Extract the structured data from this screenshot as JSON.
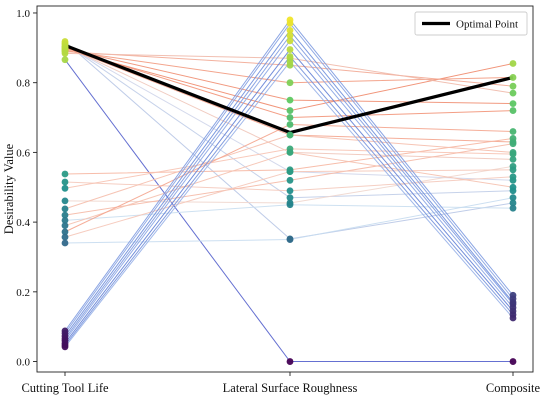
{
  "chart_data": {
    "type": "line",
    "categories": [
      "Cutting Tool Life",
      "Lateral Surface Roughness",
      "Composite"
    ],
    "ylabel": "Desirability Value",
    "ylim": [
      -0.03,
      1.02
    ],
    "yticks": [
      "0.0",
      "0.2",
      "0.4",
      "0.6",
      "0.8",
      "1.0"
    ],
    "grid": false,
    "legend": {
      "position": "top-right",
      "entries": [
        {
          "label": "Optimal Point",
          "color": "#000000"
        }
      ]
    },
    "optimal": {
      "name": "Optimal Point",
      "values": [
        0.907,
        0.657,
        0.815
      ]
    },
    "series": [
      {
        "values": [
          0.918,
          0.352,
          0.455
        ],
        "color": "#b8c7e6"
      },
      {
        "values": [
          0.913,
          0.47,
          0.49
        ],
        "color": "#c0cde8"
      },
      {
        "values": [
          0.909,
          0.545,
          0.52
        ],
        "color": "#cfd5ea"
      },
      {
        "values": [
          0.905,
          0.6,
          0.58
        ],
        "color": "#f0c7ba"
      },
      {
        "values": [
          0.902,
          0.65,
          0.63
        ],
        "color": "#f4a58e"
      },
      {
        "values": [
          0.9,
          0.7,
          0.72
        ],
        "color": "#f29378"
      },
      {
        "values": [
          0.898,
          0.75,
          0.74
        ],
        "color": "#f08e72"
      },
      {
        "values": [
          0.895,
          0.72,
          0.855
        ],
        "color": "#ef8a6c"
      },
      {
        "values": [
          0.892,
          0.8,
          0.815
        ],
        "color": "#f29a80"
      },
      {
        "values": [
          0.889,
          0.85,
          0.79
        ],
        "color": "#f2a893"
      },
      {
        "values": [
          0.884,
          0.87,
          0.77
        ],
        "color": "#f0b8a8"
      },
      {
        "values": [
          0.866,
          0.0,
          0.0
        ],
        "color": "#5460cc"
      },
      {
        "values": [
          0.538,
          0.55,
          0.64
        ],
        "color": "#f6b6a1"
      },
      {
        "values": [
          0.515,
          0.49,
          0.53
        ],
        "color": "#f4c9bb"
      },
      {
        "values": [
          0.497,
          0.61,
          0.595
        ],
        "color": "#f7c3b2"
      },
      {
        "values": [
          0.461,
          0.455,
          0.56
        ],
        "color": "#f0d6cd"
      },
      {
        "values": [
          0.438,
          0.65,
          0.6
        ],
        "color": "#f5beac"
      },
      {
        "values": [
          0.42,
          0.52,
          0.625
        ],
        "color": "#f5b9a6"
      },
      {
        "values": [
          0.405,
          0.45,
          0.44
        ],
        "color": "#c9def0"
      },
      {
        "values": [
          0.39,
          0.6,
          0.5
        ],
        "color": "#f5c1af"
      },
      {
        "values": [
          0.372,
          0.68,
          0.66
        ],
        "color": "#f4a58e"
      },
      {
        "values": [
          0.357,
          0.545,
          0.55
        ],
        "color": "#f5c7b8"
      },
      {
        "values": [
          0.34,
          0.35,
          0.47
        ],
        "color": "#c6dbef"
      },
      {
        "values": [
          0.088,
          0.98,
          0.19
        ],
        "color": "#7d9ae0"
      },
      {
        "values": [
          0.081,
          0.97,
          0.18
        ],
        "color": "#86a2e3"
      },
      {
        "values": [
          0.073,
          0.95,
          0.17
        ],
        "color": "#6f8fdc"
      },
      {
        "values": [
          0.066,
          0.935,
          0.165
        ],
        "color": "#7f9be0"
      },
      {
        "values": [
          0.06,
          0.92,
          0.155
        ],
        "color": "#8aa5e4"
      },
      {
        "values": [
          0.053,
          0.895,
          0.145
        ],
        "color": "#6482d6"
      },
      {
        "values": [
          0.047,
          0.875,
          0.135
        ],
        "color": "#7692dc"
      },
      {
        "values": [
          0.042,
          0.86,
          0.125
        ],
        "color": "#98b1e8"
      }
    ]
  }
}
